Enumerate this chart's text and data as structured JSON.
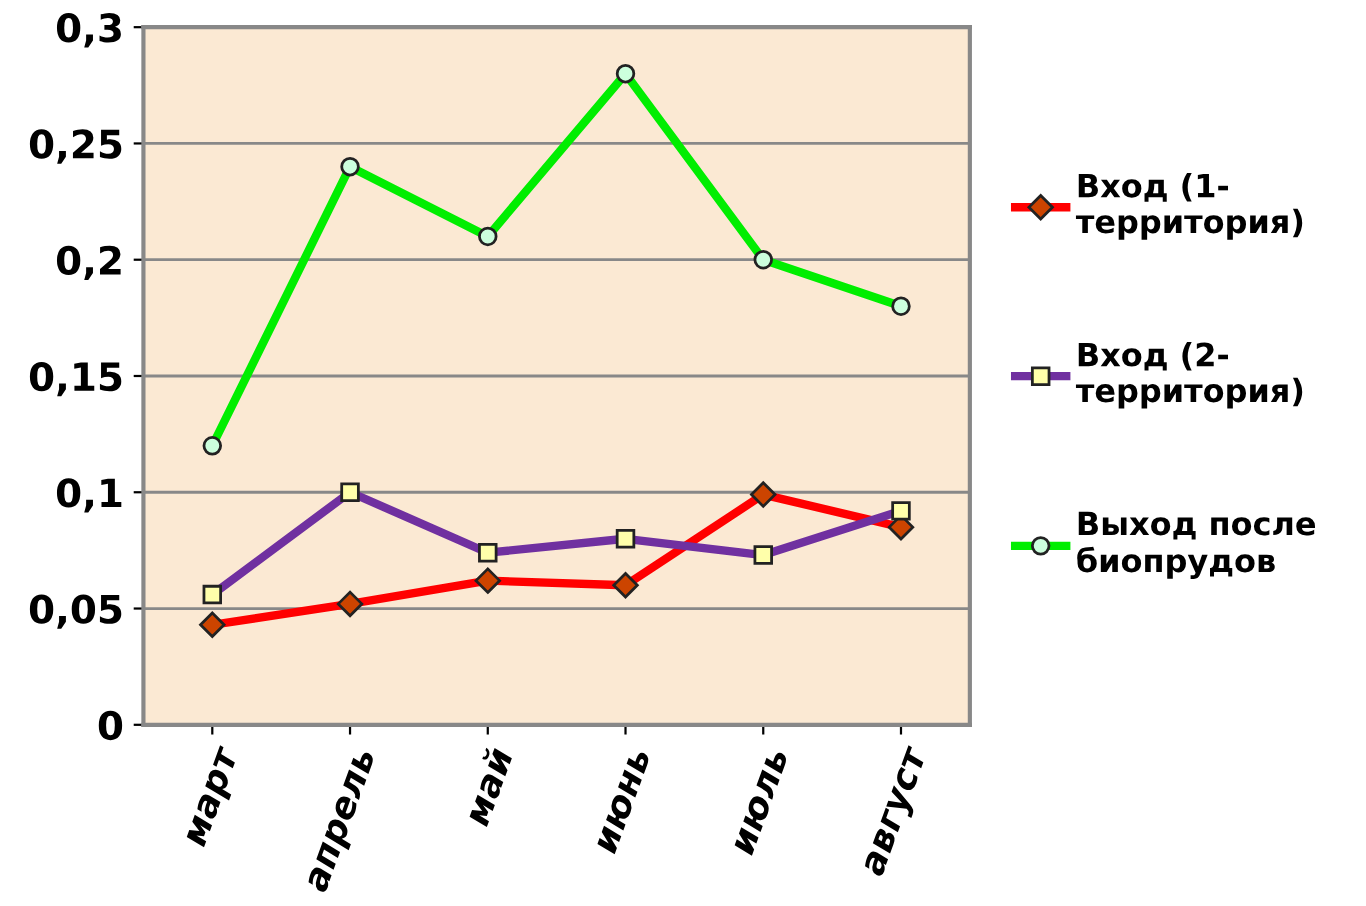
{
  "chart_data": {
    "type": "line",
    "categories": [
      "март",
      "апрель",
      "май",
      "июнь",
      "июль",
      "август"
    ],
    "series": [
      {
        "name": "Вход (1-\nтерритория)",
        "color": "#ff0000",
        "marker": "diamond",
        "values": [
          0.043,
          0.052,
          0.062,
          0.06,
          0.099,
          0.085
        ]
      },
      {
        "name": "Вход (2-\nтерритория)",
        "color": "#7030a0",
        "marker": "square",
        "values": [
          0.056,
          0.1,
          0.074,
          0.08,
          0.073,
          0.092
        ]
      },
      {
        "name": "Выход после\nбиопрудов",
        "color": "#00ee00",
        "marker": "circle",
        "values": [
          0.12,
          0.24,
          0.21,
          0.28,
          0.2,
          0.18
        ]
      }
    ],
    "ylim": [
      0,
      0.3
    ],
    "yticks": [
      {
        "value": 0,
        "label": "0"
      },
      {
        "value": 0.05,
        "label": "0,05"
      },
      {
        "value": 0.1,
        "label": "0,1"
      },
      {
        "value": 0.15,
        "label": "0,15"
      },
      {
        "value": 0.2,
        "label": "0,2"
      },
      {
        "value": 0.25,
        "label": "0,25"
      },
      {
        "value": 0.3,
        "label": "0,3"
      }
    ],
    "grid": "y",
    "legend": "right",
    "line_style": "solid"
  }
}
